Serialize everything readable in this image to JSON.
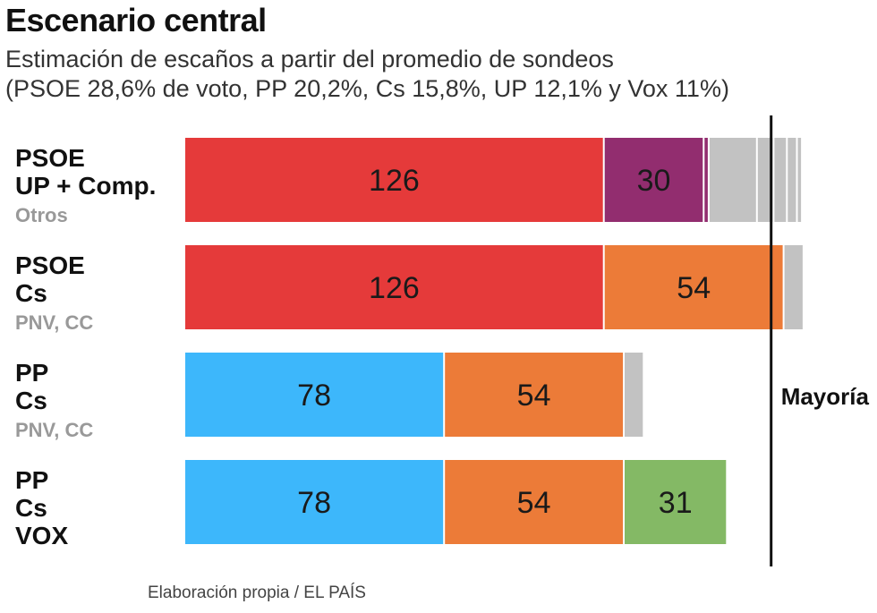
{
  "title": "Escenario central",
  "subtitle_line1": "Estimación de escaños a partir del promedio de sondeos",
  "subtitle_line2": "(PSOE 28,6% de voto, PP 20,2%, Cs 15,8%, UP 12,1% y Vox 11%)",
  "source": "Elaboración propia / EL PAÍS",
  "majority_label": "Mayoría",
  "colors": {
    "PSOE": "#e53a3a",
    "UP": "#922d6f",
    "Cs": "#ec7b38",
    "PP": "#3db7fb",
    "VOX": "#84b965",
    "Otros": "#c2c2c2",
    "majority_line": "#111111",
    "label_main": "#111111",
    "label_secondary": "#999999"
  },
  "chart_data": {
    "type": "bar",
    "orientation": "horizontal",
    "stacked": true,
    "unit": "escaños",
    "majority": 176,
    "xlim": [
      0,
      190
    ],
    "rows": [
      {
        "labels": [
          {
            "text": "PSOE",
            "secondary": false
          },
          {
            "text": "UP + Comp.",
            "secondary": false
          },
          {
            "text": "Otros",
            "secondary": true
          }
        ],
        "segments": [
          {
            "party": "PSOE",
            "value": 126,
            "label": "126"
          },
          {
            "party": "UP",
            "value": 30,
            "label": "30"
          },
          {
            "party": "UP",
            "value": 1.5,
            "label": ""
          },
          {
            "party": "Otros",
            "value": 14.5,
            "label": ""
          },
          {
            "party": "Otros",
            "value": 5,
            "label": ""
          },
          {
            "party": "Otros",
            "value": 4,
            "label": ""
          },
          {
            "party": "Otros",
            "value": 3,
            "label": ""
          },
          {
            "party": "Otros",
            "value": 1.5,
            "label": ""
          }
        ]
      },
      {
        "labels": [
          {
            "text": "PSOE",
            "secondary": false
          },
          {
            "text": "Cs",
            "secondary": false
          },
          {
            "text": "PNV, CC",
            "secondary": true
          }
        ],
        "segments": [
          {
            "party": "PSOE",
            "value": 126,
            "label": "126"
          },
          {
            "party": "Cs",
            "value": 54,
            "label": "54"
          },
          {
            "party": "Otros",
            "value": 6,
            "label": ""
          }
        ]
      },
      {
        "labels": [
          {
            "text": "PP",
            "secondary": false
          },
          {
            "text": "Cs",
            "secondary": false
          },
          {
            "text": "PNV, CC",
            "secondary": true
          }
        ],
        "segments": [
          {
            "party": "PP",
            "value": 78,
            "label": "78"
          },
          {
            "party": "Cs",
            "value": 54,
            "label": "54"
          },
          {
            "party": "Otros",
            "value": 6,
            "label": ""
          }
        ]
      },
      {
        "labels": [
          {
            "text": "PP",
            "secondary": false
          },
          {
            "text": "Cs",
            "secondary": false
          },
          {
            "text": "VOX",
            "secondary": false
          }
        ],
        "segments": [
          {
            "party": "PP",
            "value": 78,
            "label": "78"
          },
          {
            "party": "Cs",
            "value": 54,
            "label": "54"
          },
          {
            "party": "VOX",
            "value": 31,
            "label": "31"
          }
        ]
      }
    ]
  }
}
